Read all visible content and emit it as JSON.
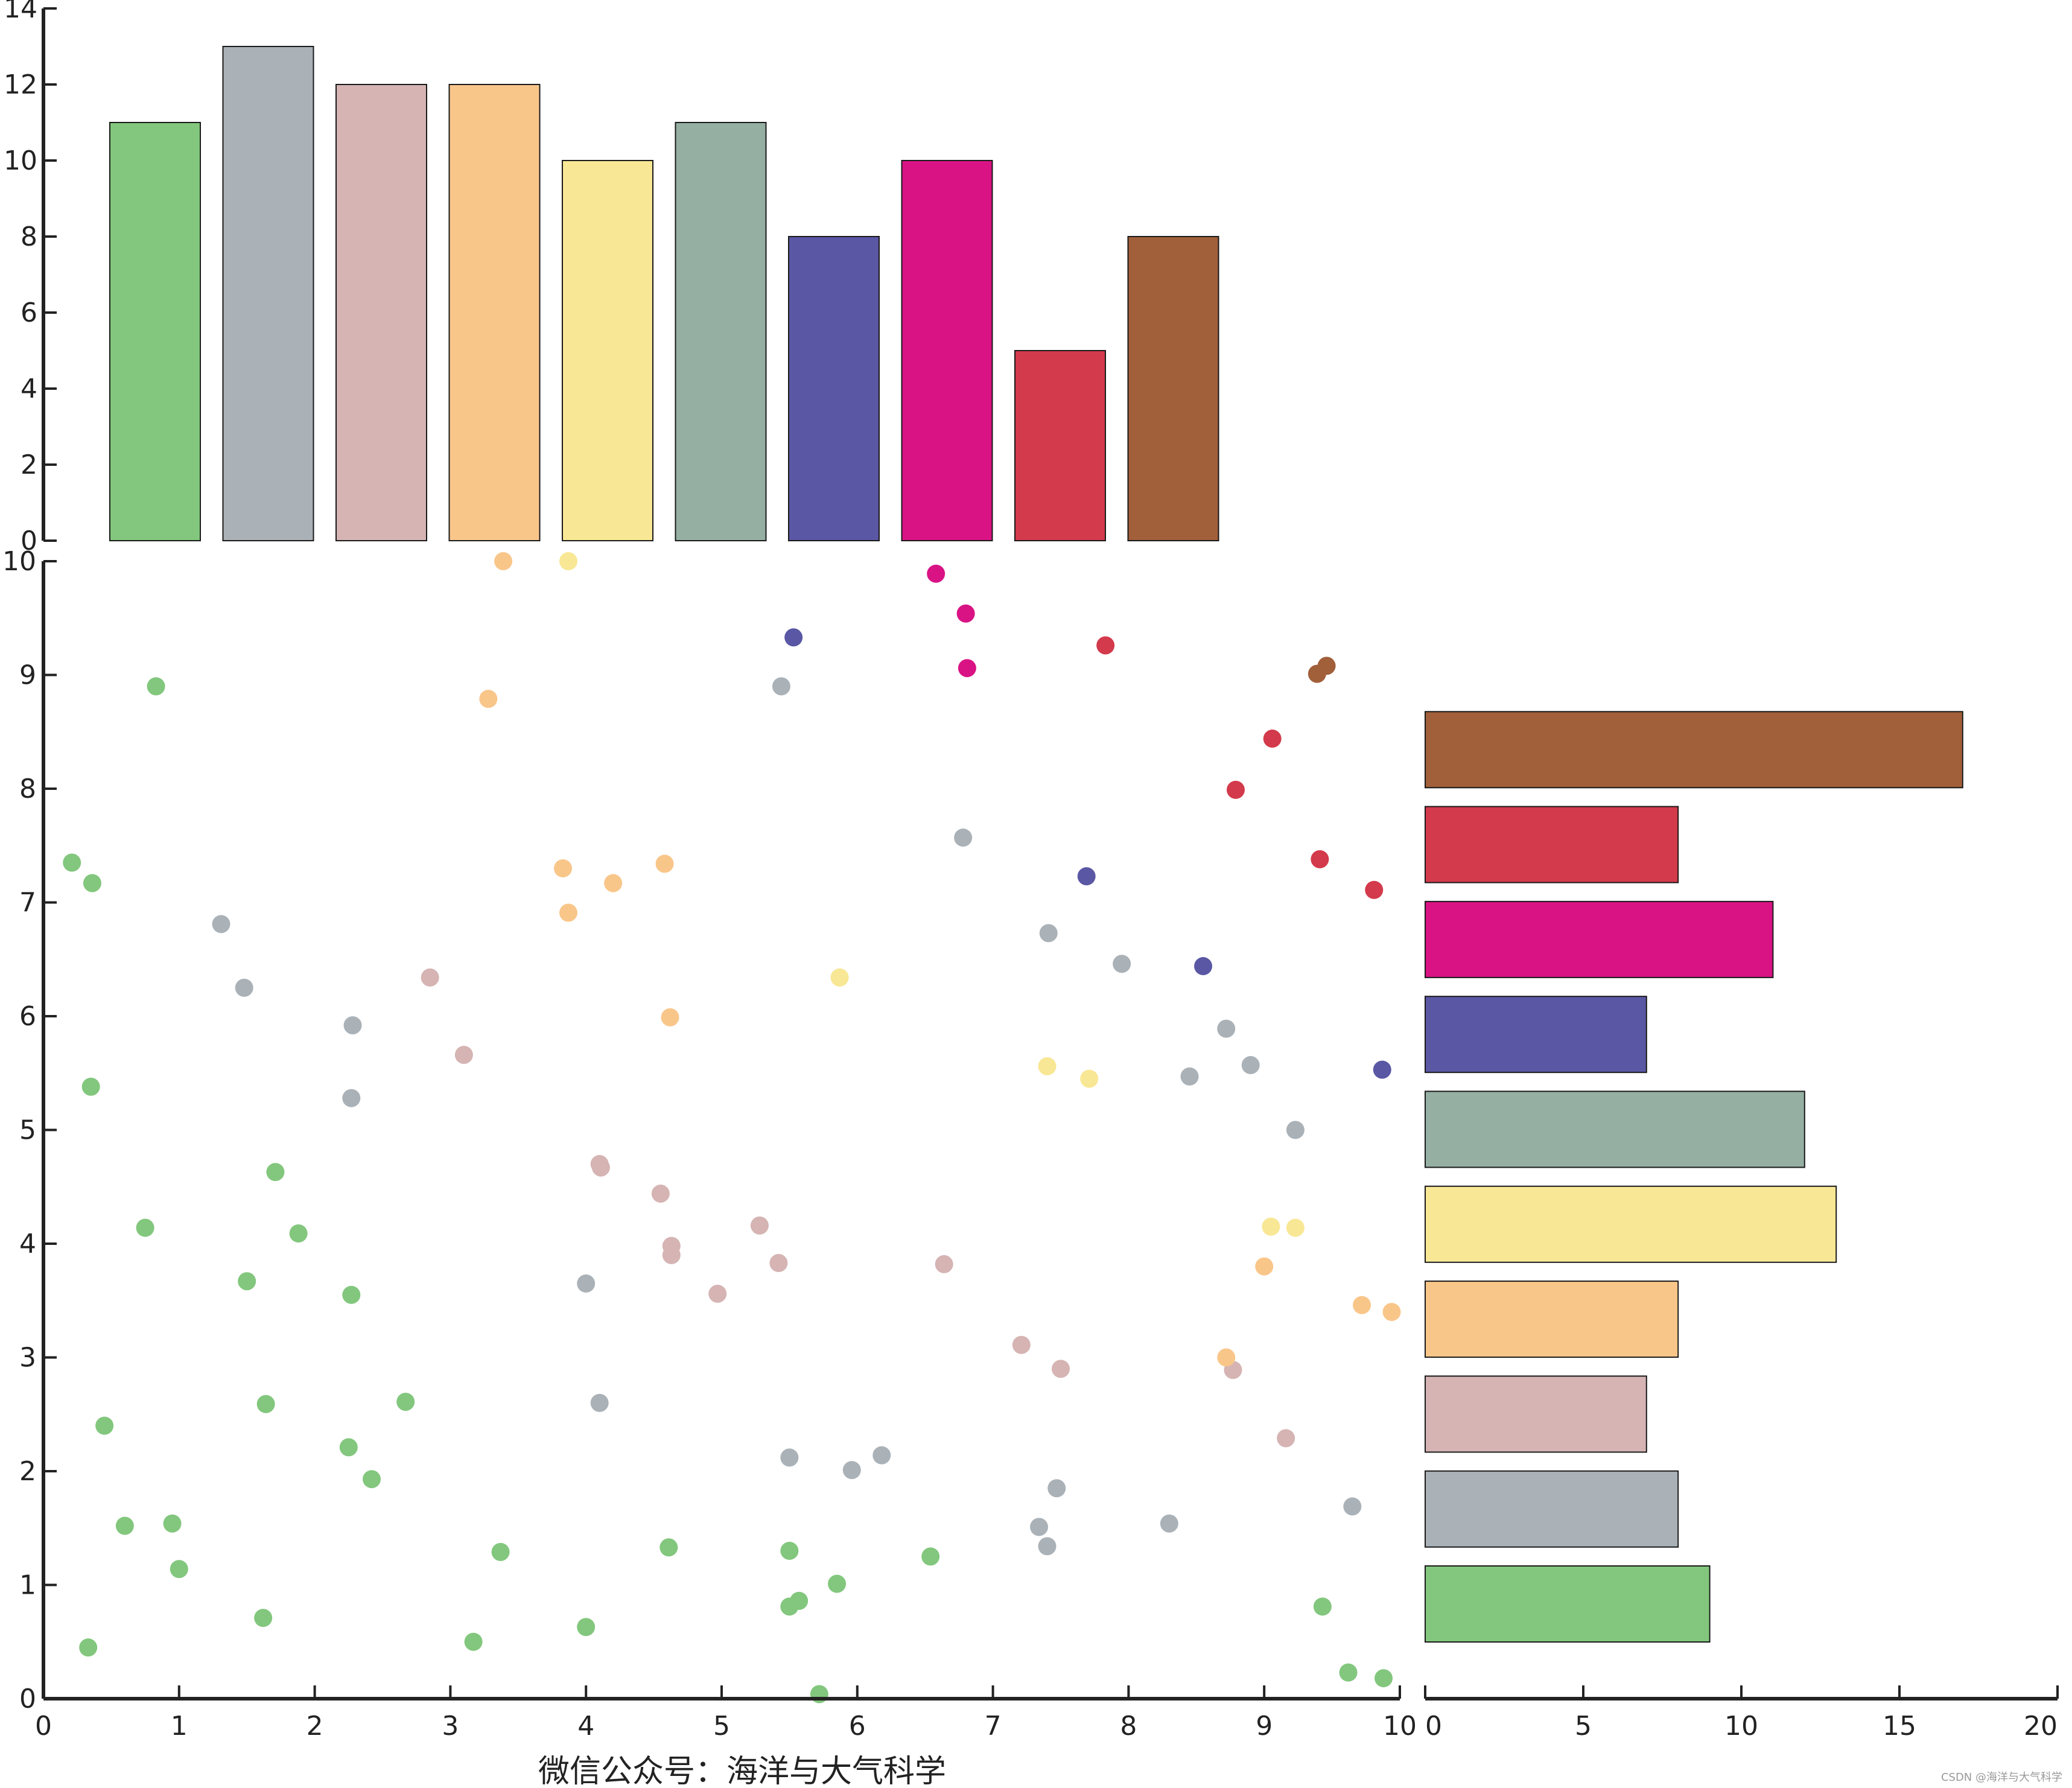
{
  "caption": "微信公众号：海洋与大气科学",
  "watermark": "CSDN @海洋与大气科学",
  "colors": [
    "#82c77d",
    "#aab2b8",
    "#d5b4b3",
    "#f9c68a",
    "#f8e794",
    "#95b0a3",
    "#5a57a4",
    "#d91384",
    "#d33a4b",
    "#a15f3a"
  ],
  "chart_data": [
    {
      "type": "bar",
      "orientation": "vertical",
      "values": [
        11,
        13,
        12,
        12,
        10,
        11,
        8,
        10,
        5,
        8
      ],
      "ylim": [
        0,
        14
      ],
      "yticks": [
        "0",
        "2",
        "4",
        "6",
        "8",
        "10",
        "12",
        "14"
      ],
      "grid": false
    },
    {
      "type": "scatter",
      "xlim": [
        0,
        10
      ],
      "ylim": [
        0,
        10
      ],
      "xticks": [
        "0",
        "1",
        "2",
        "3",
        "4",
        "5",
        "6",
        "7",
        "8",
        "9",
        "10"
      ],
      "yticks": [
        "0",
        "1",
        "2",
        "3",
        "4",
        "5",
        "6",
        "7",
        "8",
        "9",
        "10"
      ],
      "grid": false,
      "series": [
        {
          "points": [
            [
              0.21,
              7.35
            ],
            [
              0.36,
              7.17
            ],
            [
              0.35,
              5.38
            ],
            [
              0.33,
              0.45
            ],
            [
              0.45,
              2.4
            ],
            [
              0.6,
              1.52
            ],
            [
              0.75,
              4.14
            ],
            [
              0.83,
              8.9
            ],
            [
              0.95,
              1.54
            ],
            [
              1.0,
              1.14
            ],
            [
              1.5,
              3.67
            ],
            [
              1.62,
              0.71
            ],
            [
              1.64,
              2.59
            ],
            [
              1.71,
              4.63
            ],
            [
              1.88,
              4.09
            ],
            [
              2.25,
              2.21
            ],
            [
              2.27,
              3.55
            ],
            [
              2.42,
              1.93
            ],
            [
              2.67,
              2.61
            ],
            [
              3.17,
              0.5
            ],
            [
              3.37,
              1.29
            ],
            [
              4.0,
              0.63
            ],
            [
              4.61,
              1.33
            ],
            [
              5.5,
              1.3
            ],
            [
              5.5,
              0.81
            ],
            [
              5.57,
              0.86
            ],
            [
              5.72,
              0.04
            ],
            [
              5.85,
              1.01
            ],
            [
              6.54,
              1.25
            ],
            [
              9.43,
              0.81
            ],
            [
              9.62,
              0.23
            ],
            [
              9.88,
              0.18
            ]
          ]
        },
        {
          "points": [
            [
              1.31,
              6.81
            ],
            [
              1.48,
              6.25
            ],
            [
              2.27,
              5.28
            ],
            [
              2.28,
              5.92
            ],
            [
              4.0,
              3.65
            ],
            [
              4.1,
              2.6
            ],
            [
              5.44,
              8.9
            ],
            [
              5.5,
              2.12
            ],
            [
              5.96,
              2.01
            ],
            [
              6.18,
              2.14
            ],
            [
              6.78,
              7.57
            ],
            [
              7.34,
              1.51
            ],
            [
              7.4,
              1.34
            ],
            [
              7.41,
              6.73
            ],
            [
              7.47,
              1.85
            ],
            [
              7.95,
              6.46
            ],
            [
              8.3,
              1.54
            ],
            [
              8.45,
              5.47
            ],
            [
              8.72,
              5.89
            ],
            [
              8.9,
              5.57
            ],
            [
              9.23,
              5.0
            ],
            [
              9.65,
              1.69
            ]
          ]
        },
        {
          "points": [
            [
              2.85,
              6.34
            ],
            [
              3.1,
              5.66
            ],
            [
              4.1,
              4.7
            ],
            [
              4.11,
              4.67
            ],
            [
              4.55,
              4.44
            ],
            [
              4.63,
              3.98
            ],
            [
              4.63,
              3.9
            ],
            [
              4.97,
              3.56
            ],
            [
              5.28,
              4.16
            ],
            [
              5.42,
              3.83
            ],
            [
              6.64,
              3.82
            ],
            [
              7.21,
              3.11
            ],
            [
              7.5,
              2.9
            ],
            [
              8.77,
              2.89
            ],
            [
              9.16,
              2.29
            ]
          ]
        },
        {
          "points": [
            [
              3.28,
              8.79
            ],
            [
              3.39,
              10.0
            ],
            [
              3.83,
              7.3
            ],
            [
              3.87,
              6.91
            ],
            [
              4.2,
              7.17
            ],
            [
              4.58,
              7.34
            ],
            [
              4.62,
              5.99
            ],
            [
              8.72,
              3.0
            ],
            [
              9.0,
              3.8
            ],
            [
              9.72,
              3.46
            ],
            [
              9.94,
              3.4
            ]
          ]
        },
        {
          "points": [
            [
              3.87,
              10.0
            ],
            [
              5.87,
              6.34
            ],
            [
              7.4,
              5.56
            ],
            [
              7.71,
              5.45
            ],
            [
              9.05,
              4.15
            ],
            [
              9.23,
              4.14
            ]
          ]
        },
        {
          "points": []
        },
        {
          "points": [
            [
              5.53,
              9.33
            ],
            [
              7.69,
              7.23
            ],
            [
              8.55,
              6.44
            ],
            [
              9.87,
              5.53
            ]
          ]
        },
        {
          "points": [
            [
              6.58,
              9.89
            ],
            [
              6.8,
              9.54
            ],
            [
              6.81,
              9.06
            ]
          ]
        },
        {
          "points": [
            [
              7.83,
              9.26
            ],
            [
              8.79,
              7.99
            ],
            [
              9.06,
              8.44
            ],
            [
              9.41,
              7.38
            ],
            [
              9.81,
              7.11
            ]
          ]
        },
        {
          "points": [
            [
              9.39,
              9.01
            ],
            [
              9.46,
              9.08
            ]
          ]
        }
      ]
    },
    {
      "type": "bar",
      "orientation": "horizontal",
      "values": [
        9,
        8,
        7,
        8,
        13,
        12,
        7,
        11,
        8,
        17
      ],
      "xlim": [
        0,
        20
      ],
      "xticks": [
        "0",
        "5",
        "10",
        "15",
        "20"
      ],
      "grid": false
    }
  ]
}
